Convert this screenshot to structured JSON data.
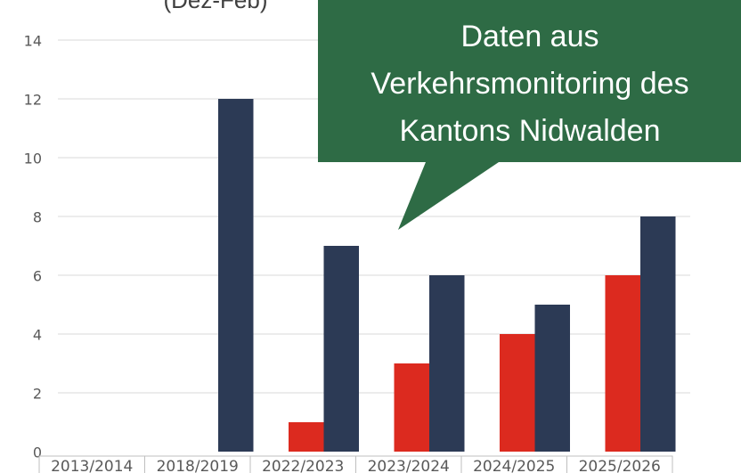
{
  "chart_data": {
    "type": "bar",
    "subtitle": "(Dez-Feb)",
    "categories": [
      "2013/2014",
      "2018/2019",
      "2022/2023",
      "2023/2024",
      "2024/2025",
      "2025/2026"
    ],
    "series": [
      {
        "color": "#dc2a1f",
        "values": [
          null,
          null,
          1,
          3,
          4,
          6
        ]
      },
      {
        "color": "#2c3a55",
        "values": [
          null,
          12,
          7,
          6,
          5,
          8
        ]
      }
    ],
    "ylim": [
      0,
      14
    ],
    "yticks": [
      0,
      2,
      4,
      6,
      8,
      10,
      12,
      14
    ],
    "grid": true,
    "annotation": {
      "color": "#2e6b45",
      "lines": [
        "Daten aus",
        "Verkehrsmonitoring des",
        "Kantons Nidwalden"
      ]
    }
  }
}
